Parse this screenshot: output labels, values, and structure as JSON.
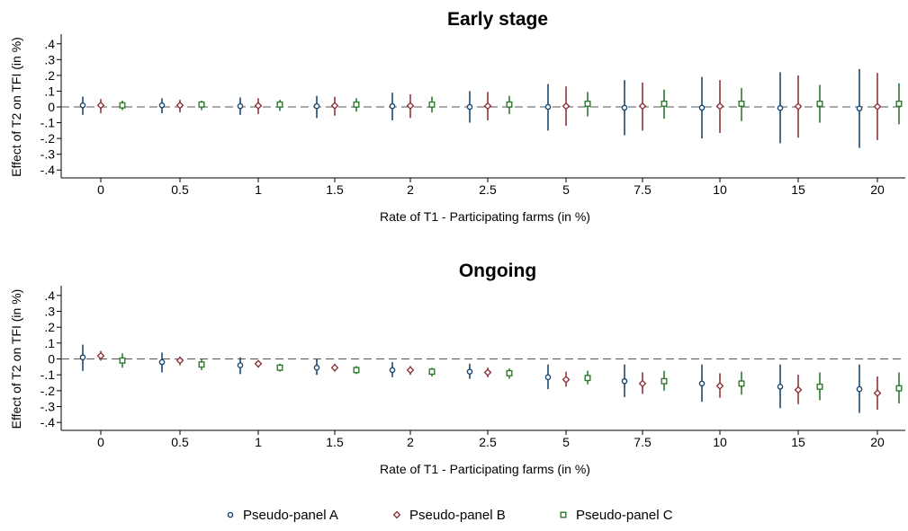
{
  "chart_data": [
    {
      "type": "scatter",
      "title": "Early stage",
      "xlabel": "Rate of T1 - Participating farms (in %)",
      "ylabel": "Effect of T2 on TFI (in %)",
      "categories": [
        "0",
        "0.5",
        "1",
        "1.5",
        "2",
        "2.5",
        "5",
        "7.5",
        "10",
        "15",
        "20"
      ],
      "ylim": [
        -0.45,
        0.45
      ],
      "yticks": [
        ".4",
        ".3",
        ".2",
        ".1",
        "0",
        "-.1",
        "-.2",
        "-.3",
        "-.4"
      ],
      "reference_line_y": 0,
      "series": [
        {
          "name": "Pseudo-panel A",
          "values": [
            0.01,
            0.01,
            0.005,
            0.005,
            0.005,
            0.0,
            0.0,
            -0.005,
            -0.005,
            -0.007,
            -0.01
          ],
          "lower": [
            -0.05,
            -0.04,
            -0.05,
            -0.07,
            -0.085,
            -0.1,
            -0.15,
            -0.18,
            -0.2,
            -0.23,
            -0.26
          ],
          "upper": [
            0.065,
            0.055,
            0.06,
            0.07,
            0.09,
            0.1,
            0.145,
            0.17,
            0.19,
            0.22,
            0.24
          ]
        },
        {
          "name": "Pseudo-panel B",
          "values": [
            0.01,
            0.01,
            0.008,
            0.008,
            0.007,
            0.006,
            0.005,
            0.005,
            0.004,
            0.003,
            0.002
          ],
          "lower": [
            -0.04,
            -0.035,
            -0.045,
            -0.055,
            -0.07,
            -0.085,
            -0.12,
            -0.15,
            -0.165,
            -0.195,
            -0.21
          ],
          "upper": [
            0.05,
            0.045,
            0.055,
            0.065,
            0.08,
            0.095,
            0.13,
            0.155,
            0.17,
            0.2,
            0.215
          ]
        },
        {
          "name": "Pseudo-panel C",
          "values": [
            0.01,
            0.015,
            0.015,
            0.015,
            0.015,
            0.015,
            0.02,
            0.02,
            0.02,
            0.02,
            0.02
          ],
          "lower": [
            -0.02,
            -0.02,
            -0.025,
            -0.03,
            -0.035,
            -0.045,
            -0.06,
            -0.075,
            -0.09,
            -0.1,
            -0.11
          ],
          "upper": [
            0.04,
            0.04,
            0.045,
            0.055,
            0.065,
            0.07,
            0.095,
            0.11,
            0.12,
            0.14,
            0.15
          ]
        }
      ]
    },
    {
      "type": "scatter",
      "title": "Ongoing",
      "xlabel": "Rate of T1 - Participating farms (in %)",
      "ylabel": "Effect of T2 on TFI (in %)",
      "categories": [
        "0",
        "0.5",
        "1",
        "1.5",
        "2",
        "2.5",
        "5",
        "7.5",
        "10",
        "15",
        "20"
      ],
      "ylim": [
        -0.45,
        0.45
      ],
      "yticks": [
        ".4",
        ".3",
        ".2",
        ".1",
        "0",
        "-.1",
        "-.2",
        "-.3",
        "-.4"
      ],
      "reference_line_y": 0,
      "series": [
        {
          "name": "Pseudo-panel A",
          "values": [
            0.01,
            -0.02,
            -0.04,
            -0.055,
            -0.07,
            -0.08,
            -0.115,
            -0.14,
            -0.155,
            -0.175,
            -0.19
          ],
          "lower": [
            -0.075,
            -0.085,
            -0.095,
            -0.1,
            -0.115,
            -0.125,
            -0.19,
            -0.24,
            -0.27,
            -0.31,
            -0.34
          ],
          "upper": [
            0.09,
            0.04,
            0.01,
            0.0,
            -0.02,
            -0.03,
            -0.035,
            -0.035,
            -0.035,
            -0.035,
            -0.035
          ]
        },
        {
          "name": "Pseudo-panel B",
          "values": [
            0.02,
            -0.01,
            -0.03,
            -0.055,
            -0.07,
            -0.085,
            -0.13,
            -0.155,
            -0.17,
            -0.195,
            -0.215
          ],
          "lower": [
            -0.01,
            -0.04,
            -0.055,
            -0.08,
            -0.1,
            -0.115,
            -0.175,
            -0.22,
            -0.245,
            -0.285,
            -0.32
          ],
          "upper": [
            0.05,
            0.015,
            -0.01,
            -0.03,
            -0.045,
            -0.055,
            -0.08,
            -0.085,
            -0.09,
            -0.1,
            -0.11
          ]
        },
        {
          "name": "Pseudo-panel C",
          "values": [
            -0.01,
            -0.035,
            -0.055,
            -0.07,
            -0.08,
            -0.09,
            -0.12,
            -0.14,
            -0.155,
            -0.175,
            -0.185
          ],
          "lower": [
            -0.055,
            -0.07,
            -0.08,
            -0.095,
            -0.11,
            -0.125,
            -0.16,
            -0.2,
            -0.225,
            -0.26,
            -0.28
          ],
          "upper": [
            0.035,
            0.0,
            -0.03,
            -0.045,
            -0.055,
            -0.06,
            -0.075,
            -0.075,
            -0.08,
            -0.085,
            -0.085
          ]
        }
      ]
    }
  ],
  "legend": {
    "position": "bottom",
    "items": [
      {
        "label": "Pseudo-panel A",
        "color": "#1a476f",
        "marker": "circle"
      },
      {
        "label": "Pseudo-panel B",
        "color": "#90353b",
        "marker": "diamond"
      },
      {
        "label": "Pseudo-panel C",
        "color": "#2d7a2d",
        "marker": "square"
      }
    ]
  },
  "colors": {
    "series_a": "#1a476f",
    "series_b": "#90353b",
    "series_c": "#2d7a2d",
    "reference_line": "#555555",
    "axis": "#000000"
  }
}
